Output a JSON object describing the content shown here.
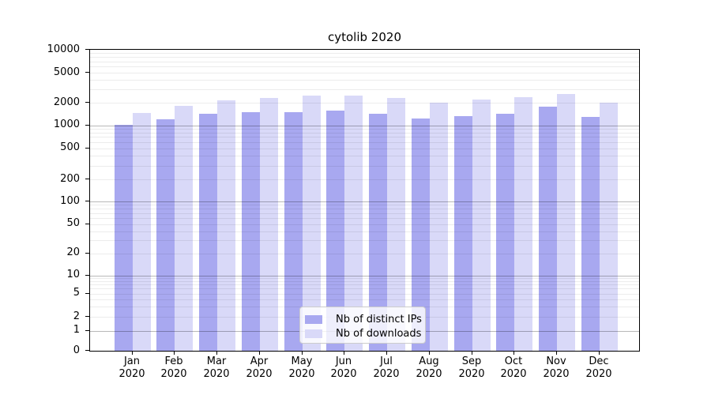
{
  "chart_data": {
    "type": "bar",
    "title": "cytolib 2020",
    "categories": [
      "Jan",
      "Feb",
      "Mar",
      "Apr",
      "May",
      "Jun",
      "Jul",
      "Aug",
      "Sep",
      "Oct",
      "Nov",
      "Dec"
    ],
    "category_year": "2020",
    "series": [
      {
        "name": "Nb of distinct IPs",
        "color": "#a8a8f0",
        "values": [
          1010,
          1190,
          1420,
          1480,
          1490,
          1560,
          1420,
          1220,
          1310,
          1420,
          1750,
          1290
        ]
      },
      {
        "name": "Nb of downloads",
        "color": "#d9d9f8",
        "values": [
          1450,
          1810,
          2150,
          2300,
          2460,
          2470,
          2310,
          2020,
          2220,
          2370,
          2580,
          1980
        ]
      }
    ],
    "xlabel": "",
    "ylabel": "",
    "yticks": [
      0,
      1,
      2,
      5,
      10,
      20,
      50,
      100,
      200,
      500,
      1000,
      2000,
      5000,
      10000
    ],
    "ylim": [
      0,
      10000
    ],
    "yscale": "symlog",
    "grid": true,
    "legend_position": "lower center"
  }
}
